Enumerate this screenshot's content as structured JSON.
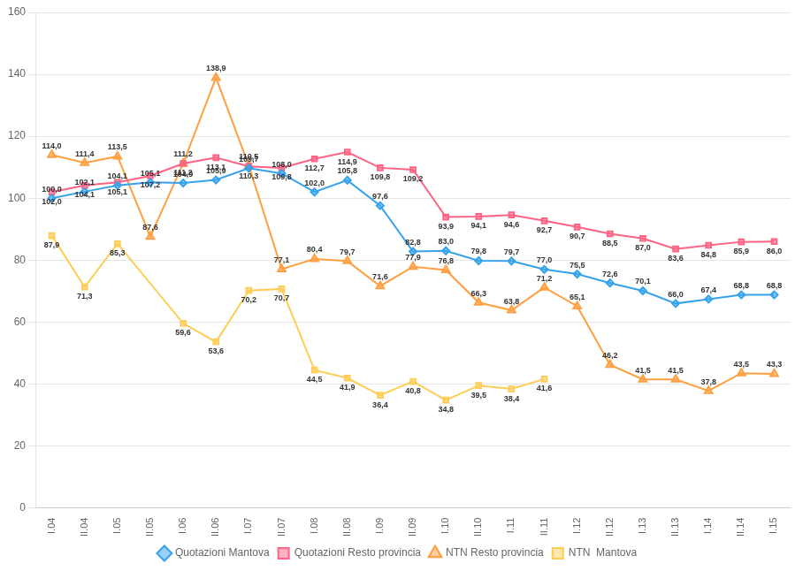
{
  "chart_data": {
    "type": "line",
    "categories": [
      "I.04",
      "II.04",
      "I.05",
      "II.05",
      "I.06",
      "II.06",
      "I.07",
      "II.07",
      "I.08",
      "II.08",
      "I.09",
      "II.09",
      "I.10",
      "II.10",
      "I.11",
      "II.11",
      "I.12",
      "II.12",
      "I.13",
      "II.13",
      "I.14",
      "II.14",
      "I.15"
    ],
    "series": [
      {
        "name": "Quotazioni Mantova",
        "marker": "diamond",
        "line_style": "solid",
        "values": [
          100.0,
          102.1,
          104.1,
          105.1,
          104.9,
          105.9,
          109.7,
          108.0,
          102.0,
          105.8,
          97.6,
          82.8,
          83.0,
          79.8,
          79.7,
          77.0,
          75.5,
          72.6,
          70.1,
          66.0,
          67.4,
          68.8,
          68.8
        ],
        "value_labels": [
          "100,0",
          "102,1",
          "104,1",
          "105,1",
          "104,9",
          "105,9",
          "109,7",
          "108,0",
          "102,0",
          "105,8",
          "97,6",
          "82,8",
          "83,0",
          "79,8",
          "79,7",
          "77,0",
          "75,5",
          "72,6",
          "70,1",
          "66,0",
          "67,4",
          "68,8",
          "68,8"
        ]
      },
      {
        "name": "Quotazioni Resto provincia",
        "marker": "square",
        "line_style": "solid",
        "values": [
          102.0,
          104.1,
          105.1,
          107.2,
          111.2,
          113.1,
          110.3,
          109.8,
          112.7,
          114.9,
          109.8,
          109.2,
          93.9,
          94.1,
          94.6,
          92.7,
          90.7,
          88.5,
          87.0,
          83.6,
          84.8,
          85.9,
          86.0
        ],
        "value_labels": [
          "102,0",
          "104,1",
          "105,1",
          "107,2",
          "111,2",
          "113,1",
          "110,3",
          "109,8",
          "112,7",
          "114,9",
          "109,8",
          "109,2",
          "93,9",
          "94,1",
          "94,6",
          "92,7",
          "90,7",
          "88,5",
          "87,0",
          "83,6",
          "84,8",
          "85,9",
          "86,0"
        ]
      },
      {
        "name": "NTN Resto provincia",
        "marker": "triangle",
        "line_style": "solid",
        "values": [
          114.0,
          111.4,
          113.5,
          87.6,
          111.2,
          138.9,
          110.5,
          77.1,
          80.4,
          79.7,
          71.6,
          77.9,
          76.8,
          66.3,
          63.8,
          71.2,
          65.1,
          46.2,
          41.5,
          41.5,
          37.8,
          43.5,
          43.3
        ],
        "value_labels": [
          "114,0",
          "111,4",
          "113,5",
          "87,6",
          "111,2",
          "138,9",
          "110,5",
          "77,1",
          "80,4",
          "79,7",
          "71,6",
          "77,9",
          "76,8",
          "66,3",
          "63,8",
          "71,2",
          "65,1",
          "46,2",
          "41,5",
          "41,5",
          "37,8",
          "43,5",
          "43,3"
        ]
      },
      {
        "name": "NTN  Mantova",
        "marker": "square",
        "line_style": "solid",
        "values": [
          87.9,
          71.3,
          85.3,
          null,
          59.6,
          53.6,
          70.2,
          70.7,
          44.5,
          41.9,
          36.4,
          40.8,
          34.8,
          39.5,
          38.4,
          41.6,
          null,
          null,
          null,
          null,
          null,
          null,
          null
        ],
        "value_labels": [
          "87,9",
          "71,3",
          "85,3",
          null,
          "59,6",
          "53,6",
          "70,2",
          "70,7",
          "44,5",
          "41,9",
          "36,4",
          "40,8",
          "34,8",
          "39,5",
          "38,4",
          "41,6",
          null,
          null,
          null,
          null,
          null,
          null,
          null
        ]
      }
    ],
    "ylim": [
      0,
      160
    ],
    "yticks": [
      0,
      20,
      40,
      60,
      80,
      100,
      120,
      140,
      160
    ],
    "grid": true,
    "legend": "bottom",
    "data_labels": true
  }
}
